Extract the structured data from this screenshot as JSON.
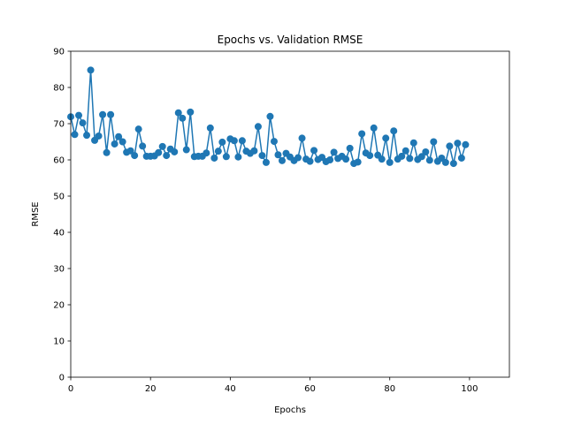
{
  "chart_data": {
    "type": "line",
    "title": "Epochs vs. Validation RMSE",
    "xlabel": "Epochs",
    "ylabel": "RMSE",
    "xlim": [
      0,
      110
    ],
    "ylim": [
      0,
      90
    ],
    "xticks": [
      0,
      20,
      40,
      60,
      80,
      100
    ],
    "yticks": [
      0,
      10,
      20,
      30,
      40,
      50,
      60,
      70,
      80,
      90
    ],
    "grid": false,
    "legend": "none",
    "color": "#1f77b4",
    "series": [
      {
        "marker": "circle",
        "x": [
          0,
          1,
          2,
          3,
          4,
          5,
          6,
          7,
          8,
          9,
          10,
          11,
          12,
          13,
          14,
          15,
          16,
          17,
          18,
          19,
          20,
          21,
          22,
          23,
          24,
          25,
          26,
          27,
          28,
          29,
          30,
          31,
          32,
          33,
          34,
          35,
          36,
          37,
          38,
          39,
          40,
          41,
          42,
          43,
          44,
          45,
          46,
          47,
          48,
          49,
          50,
          51,
          52,
          53,
          54,
          55,
          56,
          57,
          58,
          59,
          60,
          61,
          62,
          63,
          64,
          65,
          66,
          67,
          68,
          69,
          70,
          71,
          72,
          73,
          74,
          75,
          76,
          77,
          78,
          79,
          80,
          81,
          82,
          83,
          84,
          85,
          86,
          87,
          88,
          89,
          90,
          91,
          92,
          93,
          94,
          95,
          96,
          97,
          98,
          99
        ],
        "y": [
          71.9,
          67.0,
          72.3,
          70.2,
          66.8,
          84.8,
          65.4,
          66.6,
          72.5,
          62.0,
          72.5,
          64.4,
          66.4,
          65.0,
          62.1,
          62.5,
          61.2,
          68.5,
          63.8,
          61.0,
          61.0,
          61.1,
          62.0,
          63.7,
          61.2,
          63.0,
          62.2,
          73.0,
          71.5,
          62.8,
          73.2,
          60.9,
          61.0,
          61.0,
          61.9,
          68.8,
          60.5,
          62.4,
          64.9,
          60.9,
          65.8,
          65.3,
          60.8,
          65.3,
          62.4,
          61.8,
          62.5,
          69.2,
          61.2,
          59.3,
          72.0,
          65.1,
          61.4,
          59.8,
          61.8,
          60.8,
          59.8,
          60.6,
          66.0,
          60.2,
          59.6,
          62.6,
          60.1,
          60.7,
          59.5,
          60.0,
          62.1,
          60.4,
          61.0,
          60.2,
          63.2,
          59.0,
          59.4,
          67.2,
          61.9,
          61.2,
          68.8,
          61.3,
          60.2,
          66.0,
          59.3,
          68.0,
          60.2,
          61.0,
          62.5,
          60.4,
          64.7,
          60.1,
          60.9,
          62.2,
          59.9,
          65.0,
          59.6,
          60.5,
          59.3,
          63.8,
          59.0,
          64.6,
          60.5,
          64.2
        ]
      }
    ]
  }
}
